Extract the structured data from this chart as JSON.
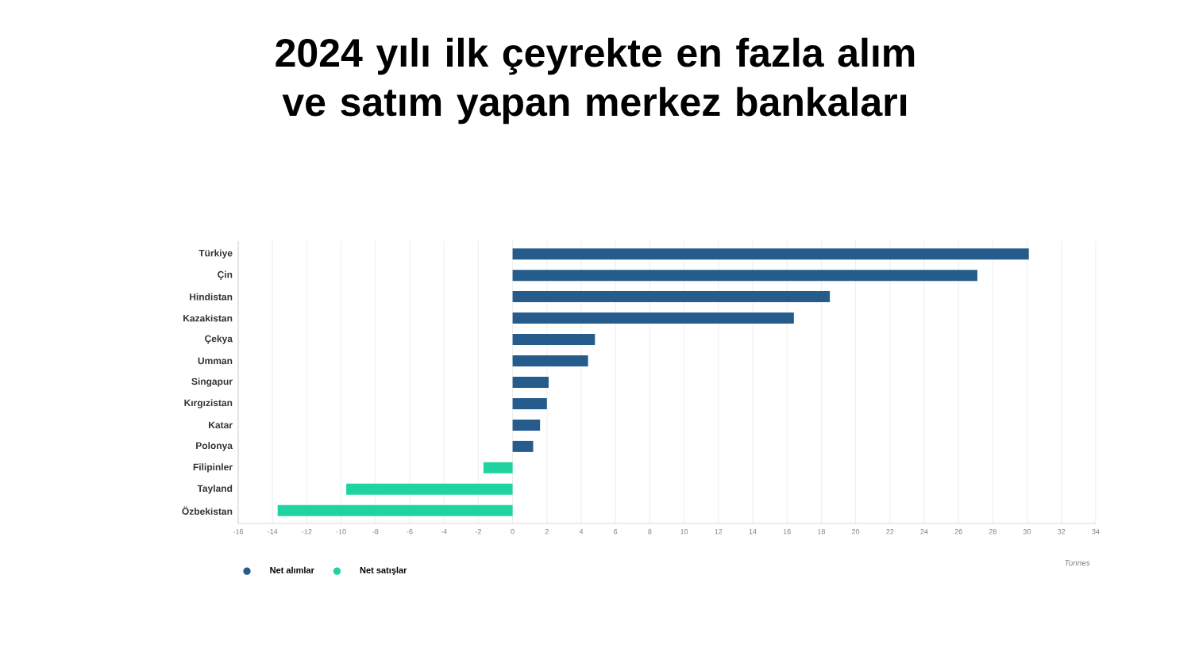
{
  "chart_data": {
    "type": "bar",
    "orientation": "horizontal",
    "title": "2024 yılı ilk çeyrekte en fazla alım ve satım yapan merkez bankaları",
    "categories": [
      "Türkiye",
      "Çin",
      "Hindistan",
      "Kazakistan",
      "Çekya",
      "Umman",
      "Singapur",
      "Kırgızistan",
      "Katar",
      "Polonya",
      "Filipinler",
      "Tayland",
      "Özbekistan"
    ],
    "series": [
      {
        "name": "Net alımlar",
        "color": "#265c8c",
        "values": [
          30.1,
          27.1,
          18.5,
          16.4,
          4.8,
          4.4,
          2.1,
          2.0,
          1.6,
          1.2,
          null,
          null,
          null
        ]
      },
      {
        "name": "Net satışlar",
        "color": "#1fd4a0",
        "values": [
          null,
          null,
          null,
          null,
          null,
          null,
          null,
          null,
          null,
          null,
          -1.7,
          -9.7,
          -13.7
        ]
      }
    ],
    "xlabel": "Tonnes",
    "xlim": [
      -16,
      34
    ],
    "xticks": [
      -16,
      -14,
      -12,
      -10,
      -8,
      -6,
      -4,
      -2,
      0,
      2,
      4,
      6,
      8,
      10,
      12,
      14,
      16,
      18,
      20,
      22,
      24,
      26,
      28,
      30,
      32,
      34
    ],
    "grid": "x",
    "legend": "bottom left"
  }
}
